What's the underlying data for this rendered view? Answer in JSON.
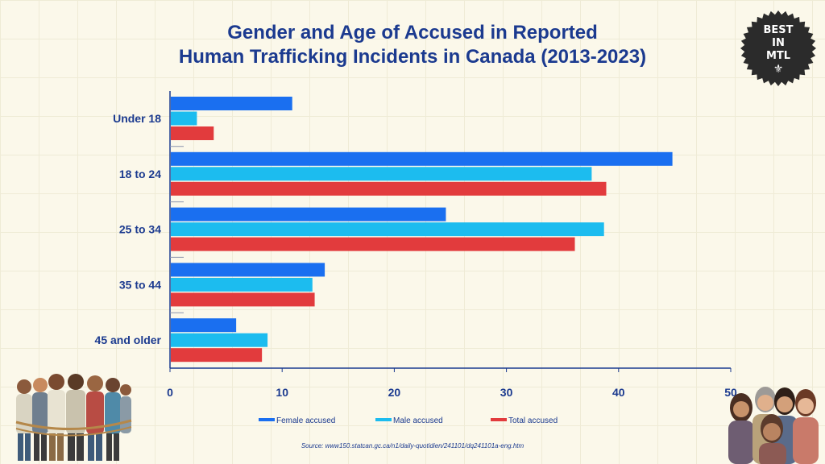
{
  "title": {
    "line1": "Gender and Age of Accused in Reported",
    "line2": "Human Trafficking Incidents in Canada (2013-2023)"
  },
  "badge": {
    "lines": [
      "BEST",
      "IN",
      "MTL"
    ],
    "icon": "fleur-de-lis-icon",
    "color": "#2b2b2b"
  },
  "source": "Source: www150.statcan.gc.ca/n1/daily-quotidien/241101/dq241101a-eng.htm",
  "chart_data": {
    "type": "bar",
    "orientation": "horizontal",
    "title": "Gender and Age of Accused in Reported Human Trafficking Incidents in Canada (2013-2023)",
    "categories": [
      "Under 18",
      "18 to 24",
      "25 to 34",
      "35 to 44",
      "45 and older"
    ],
    "series": [
      {
        "name": "Female accused",
        "color": "#1a6ff0",
        "values": [
          10.9,
          44.8,
          24.6,
          13.8,
          5.9
        ]
      },
      {
        "name": "Male accused",
        "color": "#1cbcef",
        "values": [
          2.4,
          37.6,
          38.7,
          12.7,
          8.7
        ]
      },
      {
        "name": "Total accused",
        "color": "#e23b3d",
        "values": [
          3.9,
          38.9,
          36.1,
          12.9,
          8.2
        ]
      }
    ],
    "xlim": [
      0,
      50
    ],
    "xticks": [
      0,
      10,
      20,
      30,
      40,
      50
    ],
    "xlabel": "",
    "ylabel": "",
    "grid": false,
    "legend": "bottom"
  },
  "colors": {
    "accent": "#1b3a8f",
    "background": "#fbf8ea"
  }
}
